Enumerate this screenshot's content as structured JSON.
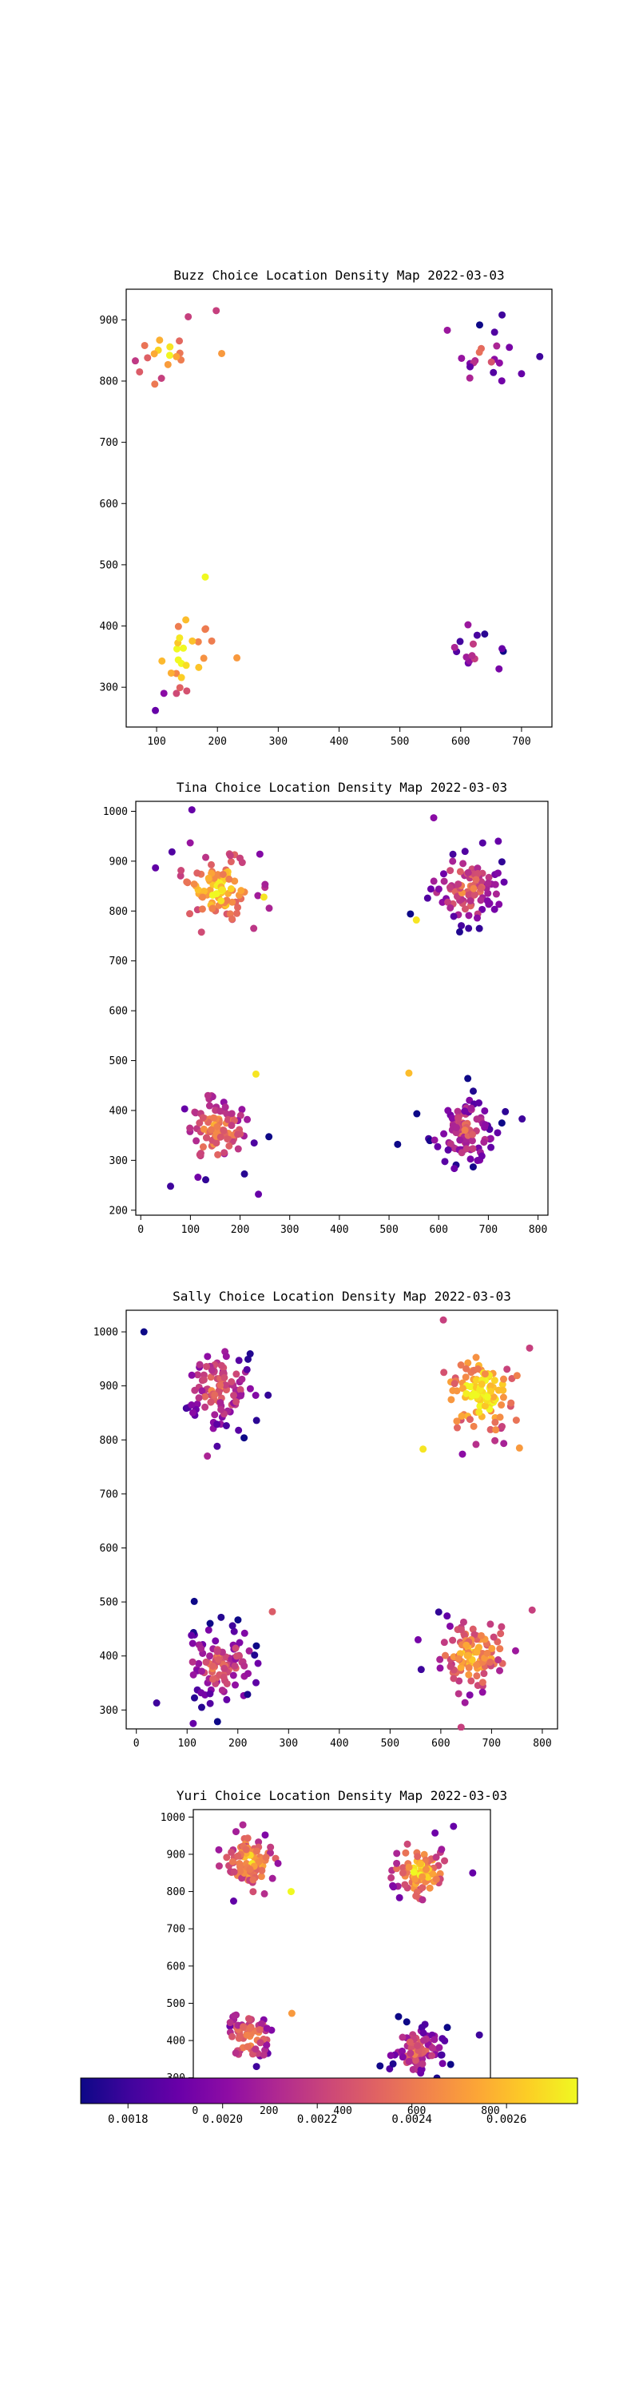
{
  "colorbar": {
    "colormap": "plasma",
    "min": 0.0017,
    "max": 0.00275,
    "tick_labels": [
      "0.0018",
      "0.0020",
      "0.0022",
      "0.0024",
      "0.0026"
    ],
    "tick_values": [
      0.0018,
      0.002,
      0.0022,
      0.0024,
      0.0026
    ]
  },
  "chart_data": [
    {
      "type": "scatter",
      "title": "Buzz Choice Location Density Map 2022-03-03",
      "xlabel": "",
      "ylabel": "",
      "xticks": [
        100,
        200,
        300,
        400,
        500,
        600,
        700
      ],
      "yticks": [
        300,
        400,
        500,
        600,
        700,
        800,
        900
      ],
      "xlim": [
        50,
        750
      ],
      "ylim": [
        235,
        950
      ],
      "series": [
        {
          "clusters": [
            {
              "cx": 112,
              "cy": 845,
              "spread": 38,
              "n": 14,
              "color": 0.0024
            },
            {
              "cx": 640,
              "cy": 843,
              "spread": 40,
              "n": 15,
              "color": 0.00197
            },
            {
              "cx": 140,
              "cy": 355,
              "spread": 45,
              "n": 22,
              "color": 0.0025
            },
            {
              "cx": 625,
              "cy": 355,
              "spread": 30,
              "n": 11,
              "color": 0.00195
            }
          ],
          "points": [
            [
              180,
              480,
              0.00275
            ],
            [
              198,
              915,
              0.0022
            ],
            [
              152,
              905,
              0.0022
            ],
            [
              72,
              815,
              0.0023
            ],
            [
              97,
              795,
              0.0024
            ],
            [
              207,
              845,
              0.0025
            ],
            [
              232,
              348,
              0.0025
            ],
            [
              98,
              262,
              0.0019
            ],
            [
              112,
              290,
              0.002
            ],
            [
              148,
              410,
              0.0026
            ],
            [
              578,
              883,
              0.00205
            ],
            [
              668,
              908,
              0.0018
            ],
            [
              730,
              840,
              0.0018
            ],
            [
              615,
              805,
              0.0021
            ],
            [
              700,
              812,
              0.0019
            ],
            [
              680,
              855,
              0.00195
            ],
            [
              612,
              402,
              0.00205
            ],
            [
              663,
              330,
              0.00195
            ],
            [
              668,
              363,
              0.0019
            ],
            [
              590,
              365,
              0.0021
            ]
          ]
        }
      ]
    },
    {
      "type": "scatter",
      "title": "Tina Choice Location Density Map 2022-03-03",
      "xlabel": "",
      "ylabel": "",
      "xticks": [
        0,
        100,
        200,
        300,
        400,
        500,
        600,
        700,
        800
      ],
      "yticks": [
        200,
        300,
        400,
        500,
        600,
        700,
        800,
        900,
        1000
      ],
      "xlim": [
        -10,
        820
      ],
      "ylim": [
        190,
        1020
      ],
      "series": [
        {
          "clusters": [
            {
              "cx": 155,
              "cy": 845,
              "spread": 60,
              "n": 95,
              "color": 0.0024
            },
            {
              "cx": 655,
              "cy": 845,
              "spread": 55,
              "n": 100,
              "color": 0.0021
            },
            {
              "cx": 150,
              "cy": 360,
              "spread": 55,
              "n": 95,
              "color": 0.0022
            },
            {
              "cx": 650,
              "cy": 360,
              "spread": 55,
              "n": 105,
              "color": 0.002
            }
          ],
          "points": [
            [
              103,
              1003,
              0.0019
            ],
            [
              590,
              987,
              0.002
            ],
            [
              60,
              248,
              0.0018
            ],
            [
              237,
              232,
              0.0019
            ],
            [
              768,
              383,
              0.0018
            ],
            [
              232,
              473,
              0.0027
            ],
            [
              555,
              782,
              0.0027
            ],
            [
              248,
              828,
              0.0027
            ],
            [
              720,
              940,
              0.0019
            ],
            [
              540,
              475,
              0.0026
            ]
          ]
        }
      ]
    },
    {
      "type": "scatter",
      "title": "Sally Choice Location Density Map 2022-03-03",
      "xlabel": "",
      "ylabel": "",
      "xticks": [
        0,
        100,
        200,
        300,
        400,
        500,
        600,
        700,
        800
      ],
      "yticks": [
        300,
        400,
        500,
        600,
        700,
        800,
        900,
        1000
      ],
      "xlim": [
        -20,
        830
      ],
      "ylim": [
        265,
        1040
      ],
      "series": [
        {
          "clusters": [
            {
              "cx": 160,
              "cy": 893,
              "spread": 60,
              "n": 110,
              "color": 0.00205
            },
            {
              "cx": 680,
              "cy": 885,
              "spread": 55,
              "n": 115,
              "color": 0.0025
            },
            {
              "cx": 165,
              "cy": 385,
              "spread": 55,
              "n": 110,
              "color": 0.00205
            },
            {
              "cx": 665,
              "cy": 400,
              "spread": 55,
              "n": 110,
              "color": 0.0023
            }
          ],
          "points": [
            [
              15,
              1000,
              0.0017
            ],
            [
              140,
              770,
              0.0021
            ],
            [
              605,
              1022,
              0.0022
            ],
            [
              775,
              970,
              0.0022
            ],
            [
              565,
              783,
              0.0027
            ],
            [
              755,
              785,
              0.0025
            ],
            [
              40,
              313,
              0.0018
            ],
            [
              112,
              275,
              0.0019
            ],
            [
              640,
              268,
              0.0022
            ],
            [
              780,
              485,
              0.0022
            ],
            [
              268,
              482,
              0.0023
            ]
          ]
        }
      ]
    },
    {
      "type": "scatter",
      "title": "Yuri Choice Location Density Map 2022-03-03",
      "xlabel": "",
      "ylabel": "",
      "xticks": [
        0,
        200,
        400,
        600,
        800
      ],
      "yticks": [
        300,
        400,
        500,
        600,
        700,
        800,
        900,
        1000
      ],
      "xlim": [
        -5,
        800
      ],
      "ylim": [
        250,
        1020
      ],
      "series": [
        {
          "clusters": [
            {
              "cx": 150,
              "cy": 880,
              "spread": 60,
              "n": 95,
              "color": 0.0023
            },
            {
              "cx": 610,
              "cy": 855,
              "spread": 50,
              "n": 95,
              "color": 0.0024
            },
            {
              "cx": 150,
              "cy": 410,
              "spread": 50,
              "n": 70,
              "color": 0.0022
            },
            {
              "cx": 600,
              "cy": 370,
              "spread": 55,
              "n": 85,
              "color": 0.00205
            }
          ],
          "points": [
            [
              48,
              282,
              0.0018
            ],
            [
              125,
              272,
              0.0019
            ],
            [
              770,
              415,
              0.0018
            ],
            [
              700,
              975,
              0.0019
            ],
            [
              752,
              850,
              0.0019
            ],
            [
              260,
              800,
              0.00275
            ],
            [
              262,
              473,
              0.0025
            ]
          ]
        }
      ]
    }
  ]
}
